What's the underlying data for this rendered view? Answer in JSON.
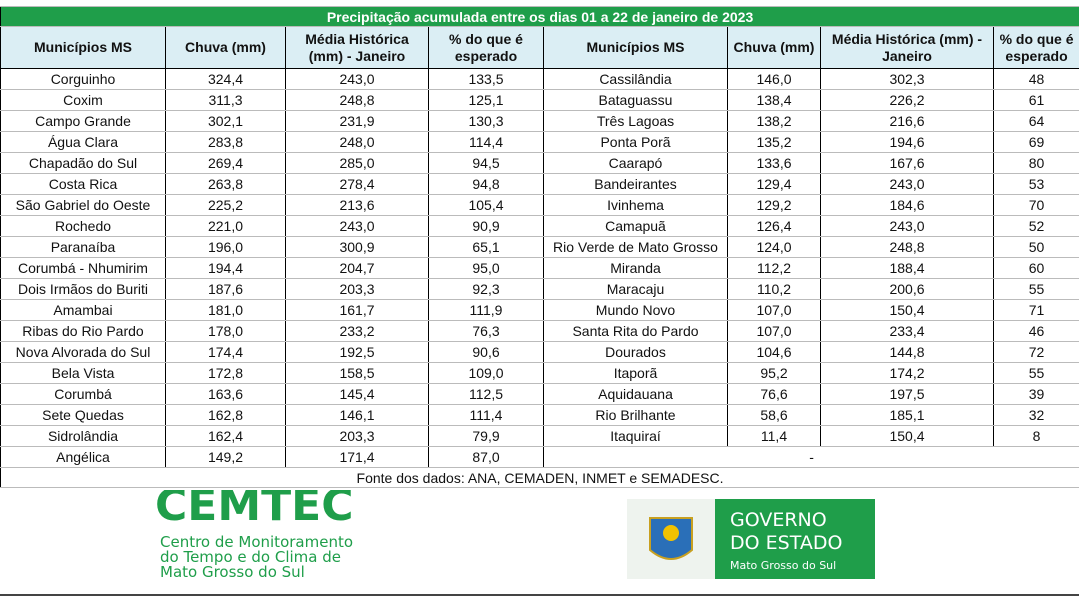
{
  "table": {
    "title": "Precipitação acumulada entre os dias 01 a 22 de janeiro de 2023",
    "headers": [
      "Municípios MS",
      "Chuva (mm)",
      "Média Histórica (mm) - Janeiro",
      "% do que é esperado",
      "Municípios MS",
      "Chuva (mm)",
      "Média Histórica (mm) - Janeiro",
      "% do que é esperado"
    ],
    "left_rows": [
      [
        "Corguinho",
        "324,4",
        "243,0",
        "133,5"
      ],
      [
        "Coxim",
        "311,3",
        "248,8",
        "125,1"
      ],
      [
        "Campo Grande",
        "302,1",
        "231,9",
        "130,3"
      ],
      [
        "Água Clara",
        "283,8",
        "248,0",
        "114,4"
      ],
      [
        "Chapadão do Sul",
        "269,4",
        "285,0",
        "94,5"
      ],
      [
        "Costa Rica",
        "263,8",
        "278,4",
        "94,8"
      ],
      [
        "São Gabriel do Oeste",
        "225,2",
        "213,6",
        "105,4"
      ],
      [
        "Rochedo",
        "221,0",
        "243,0",
        "90,9"
      ],
      [
        "Paranaíba",
        "196,0",
        "300,9",
        "65,1"
      ],
      [
        "Corumbá - Nhumirim",
        "194,4",
        "204,7",
        "95,0"
      ],
      [
        "Dois Irmãos do Buriti",
        "187,6",
        "203,3",
        "92,3"
      ],
      [
        "Amambai",
        "181,0",
        "161,7",
        "111,9"
      ],
      [
        "Ribas do Rio Pardo",
        "178,0",
        "233,2",
        "76,3"
      ],
      [
        "Nova Alvorada do Sul",
        "174,4",
        "192,5",
        "90,6"
      ],
      [
        "Bela Vista",
        "172,8",
        "158,5",
        "109,0"
      ],
      [
        "Corumbá",
        "163,6",
        "145,4",
        "112,5"
      ],
      [
        "Sete Quedas",
        "162,8",
        "146,1",
        "111,4"
      ],
      [
        "Sidrolândia",
        "162,4",
        "203,3",
        "79,9"
      ],
      [
        "Angélica",
        "149,2",
        "171,4",
        "87,0"
      ]
    ],
    "right_rows": [
      [
        "Cassilândia",
        "146,0",
        "302,3",
        "48"
      ],
      [
        "Bataguassu",
        "138,4",
        "226,2",
        "61"
      ],
      [
        "Três Lagoas",
        "138,2",
        "216,6",
        "64"
      ],
      [
        "Ponta Porã",
        "135,2",
        "194,6",
        "69"
      ],
      [
        "Caarapó",
        "133,6",
        "167,6",
        "80"
      ],
      [
        "Bandeirantes",
        "129,4",
        "243,0",
        "53"
      ],
      [
        "Ivinhema",
        "129,2",
        "184,6",
        "70"
      ],
      [
        "Camapuã",
        "126,4",
        "243,0",
        "52"
      ],
      [
        "Rio Verde de Mato Grosso",
        "124,0",
        "248,8",
        "50"
      ],
      [
        "Miranda",
        "112,2",
        "188,4",
        "60"
      ],
      [
        "Maracaju",
        "110,2",
        "200,6",
        "55"
      ],
      [
        "Mundo Novo",
        "107,0",
        "150,4",
        "71"
      ],
      [
        "Santa Rita do Pardo",
        "107,0",
        "233,4",
        "46"
      ],
      [
        "Dourados",
        "104,6",
        "144,8",
        "72"
      ],
      [
        "Itaporã",
        "95,2",
        "174,2",
        "55"
      ],
      [
        "Aquidauana",
        "76,6",
        "197,5",
        "39"
      ],
      [
        "Rio Brilhante",
        "58,6",
        "185,1",
        "32"
      ],
      [
        "Itaquiraí",
        "11,4",
        "150,4",
        "8"
      ]
    ],
    "right_empty": "-",
    "source": "Fonte dos dados: ANA, CEMADEN, INMET e SEMADESC."
  },
  "logos": {
    "cemtec": {
      "name": "CEMTEC",
      "lines": [
        "Centro de Monitoramento",
        "do Tempo e do Clima de",
        "Mato Grosso do Sul"
      ]
    },
    "governo": {
      "lines": [
        "GOVERNO",
        "DO ESTADO",
        "Mato Grosso do Sul"
      ]
    }
  }
}
